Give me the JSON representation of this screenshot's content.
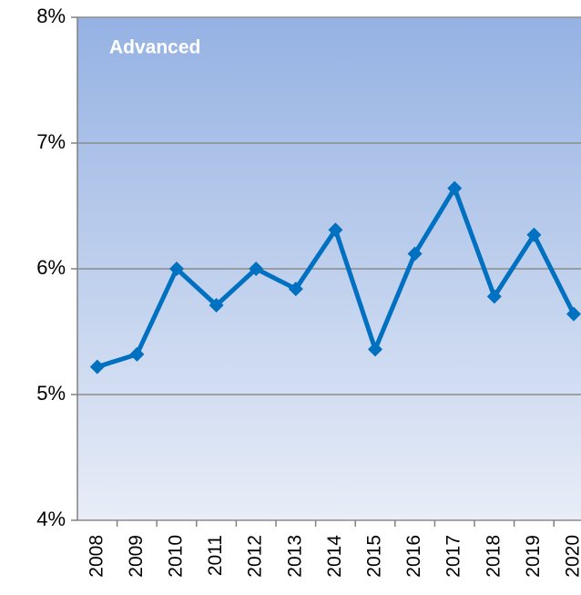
{
  "chart_data": {
    "type": "line",
    "annotation": "Advanced",
    "categories": [
      "2008",
      "2009",
      "2010",
      "2011",
      "2012",
      "2013",
      "2014",
      "2015",
      "2016",
      "2017",
      "2018",
      "2019",
      "2020"
    ],
    "series": [
      {
        "name": "Advanced",
        "color": "#0070c0",
        "values": [
          5.22,
          5.32,
          6.0,
          5.71,
          6.0,
          5.84,
          6.31,
          5.36,
          6.12,
          6.64,
          5.78,
          6.27,
          5.64
        ]
      }
    ],
    "ylim": [
      4,
      8
    ],
    "yticks": [
      {
        "value": 4,
        "label": "4%"
      },
      {
        "value": 5,
        "label": "5%"
      },
      {
        "value": 6,
        "label": "6%"
      },
      {
        "value": 7,
        "label": "7%"
      },
      {
        "value": 8,
        "label": "8%"
      }
    ],
    "grid": true
  }
}
